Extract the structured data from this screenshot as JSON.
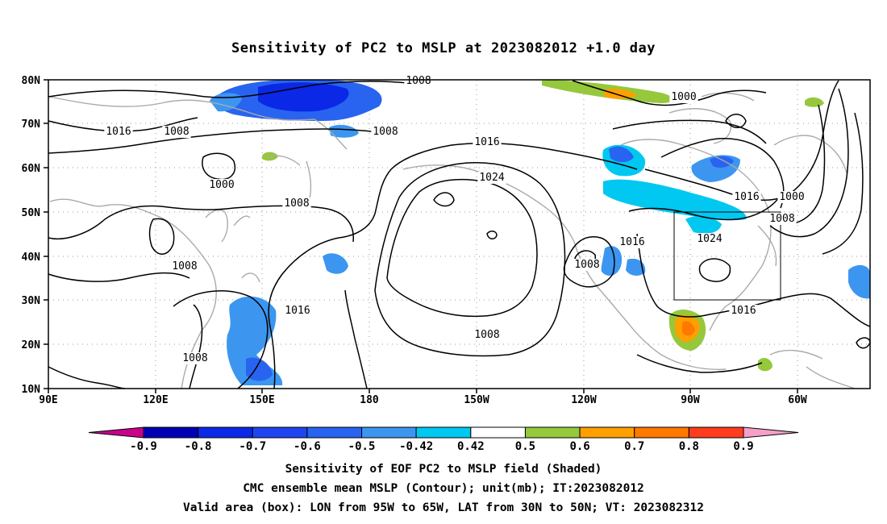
{
  "title": "Sensitivity of PC2 to MSLP at 2023082012 +1.0 day",
  "lat_labels": [
    "80N",
    "70N",
    "60N",
    "50N",
    "40N",
    "30N",
    "20N",
    "10N"
  ],
  "lon_labels": [
    "90E",
    "120E",
    "150E",
    "180",
    "150W",
    "120W",
    "90W",
    "60W"
  ],
  "colorbar": {
    "labels": [
      "-0.9",
      "-0.8",
      "-0.7",
      "-0.6",
      "-0.5",
      "-0.42",
      "0.42",
      "0.5",
      "0.6",
      "0.7",
      "0.8",
      "0.9"
    ],
    "colors": [
      "#c8008c",
      "#0000b4",
      "#0a28e6",
      "#1e46f0",
      "#2864f0",
      "#3c96f0",
      "#00c8f0",
      "#ffffff",
      "#96c83c",
      "#ffa000",
      "#ff7800",
      "#ff3c1e",
      "#ff0000",
      "#f5a0c8"
    ]
  },
  "contour_labels": [
    "1008",
    "1016",
    "1008",
    "1008",
    "1000",
    "1008",
    "1016",
    "1024",
    "1000",
    "1016",
    "1000",
    "1008",
    "1024",
    "1016",
    "1008",
    "1008",
    "1016",
    "1016",
    "1008",
    "1008"
  ],
  "captions": [
    "Sensitivity of EOF PC2 to MSLP field (Shaded)",
    "CMC ensemble mean MSLP (Contour); unit(mb); IT:2023082012",
    "Valid area (box): LON from 95W to 65W, LAT from 30N to 50N; VT: 2023082312"
  ]
}
